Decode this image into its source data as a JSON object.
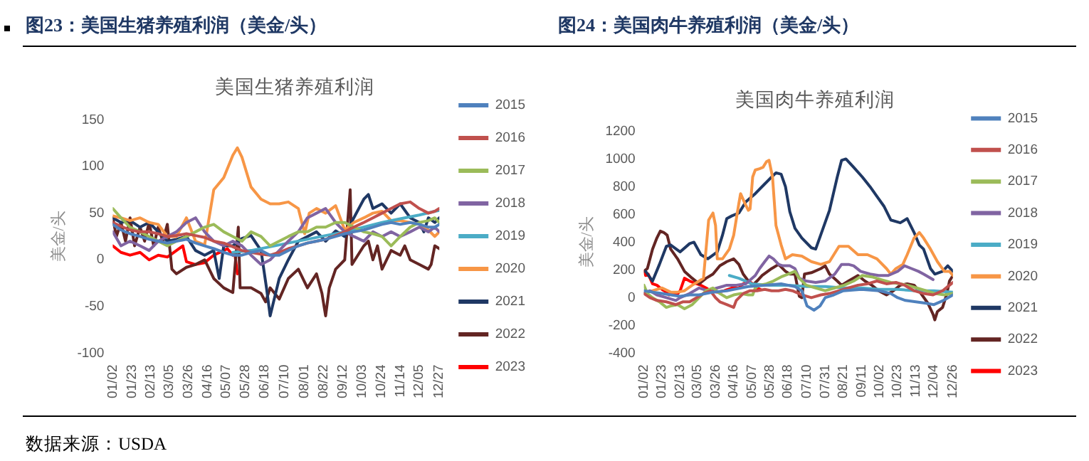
{
  "chart_data": [
    {
      "type": "line",
      "title": "图23：美国生猪养殖利润（美金/头）",
      "subtitle": "美国生猪养殖利润",
      "ylabel": "美金/头",
      "legend": "right",
      "annotations": [
        "数据来源：USDA"
      ],
      "xlim": [
        "--01-02",
        "--12-27"
      ],
      "xticks": [
        {
          "value": "--01-02",
          "label": "01/02"
        },
        {
          "value": "--01-23",
          "label": "01/23"
        },
        {
          "value": "--02-13",
          "label": "02/13"
        },
        {
          "value": "--03-05",
          "label": "03/05"
        },
        {
          "value": "--03-26",
          "label": "03/26"
        },
        {
          "value": "--04-16",
          "label": "04/16"
        },
        {
          "value": "--05-07",
          "label": "05/07"
        },
        {
          "value": "--05-28",
          "label": "05/28"
        },
        {
          "value": "--06-18",
          "label": "06/18"
        },
        {
          "value": "--07-10",
          "label": "07/10"
        },
        {
          "value": "--08-01",
          "label": "08/01"
        },
        {
          "value": "--08-22",
          "label": "08/22"
        },
        {
          "value": "--09-12",
          "label": "09/12"
        },
        {
          "value": "--10-03",
          "label": "10/03"
        },
        {
          "value": "--10-24",
          "label": "10/24"
        },
        {
          "value": "--11-14",
          "label": "11/14"
        },
        {
          "value": "--12-05",
          "label": "12/05"
        },
        {
          "value": "--12-27",
          "label": "12/27"
        }
      ],
      "ylim": [
        -100,
        150
      ],
      "yticks": [
        -100,
        -50,
        0,
        50,
        100,
        150
      ],
      "x": [
        "--01-02",
        "--01-11",
        "--01-21",
        "--02-01",
        "--02-11",
        "--02-21",
        "--03-03",
        "--03-13",
        "--03-24",
        "--04-03",
        "--04-13",
        "--04-23",
        "--05-04",
        "--05-14",
        "--05-24",
        "--06-03",
        "--06-14",
        "--06-24",
        "--07-04",
        "--07-14",
        "--07-25",
        "--08-04",
        "--08-14",
        "--08-24",
        "--09-04",
        "--09-14",
        "--09-24",
        "--10-05",
        "--10-15",
        "--10-25",
        "--11-04",
        "--11-14",
        "--11-25",
        "--12-05",
        "--12-15",
        "--12-22",
        "--12-27"
      ],
      "series": [
        {
          "name": "2015",
          "color": "#4f81bd",
          "values": [
            38,
            32,
            28,
            25,
            22,
            20,
            18,
            20,
            22,
            18,
            15,
            12,
            8,
            5,
            5,
            8,
            10,
            5,
            5,
            10,
            15,
            18,
            20,
            22,
            25,
            28,
            30,
            32,
            35,
            38,
            40,
            38,
            40,
            38,
            35,
            35,
            38
          ]
        },
        {
          "name": "2016",
          "color": "#c0504d",
          "values": [
            40,
            36,
            32,
            30,
            30,
            28,
            25,
            26,
            28,
            26,
            24,
            20,
            18,
            14,
            10,
            8,
            6,
            5,
            8,
            12,
            15,
            18,
            20,
            22,
            26,
            30,
            35,
            40,
            45,
            50,
            55,
            60,
            62,
            55,
            50,
            52,
            55
          ]
        },
        {
          "name": "2017",
          "color": "#9bbb59",
          "values": [
            55,
            45,
            35,
            30,
            25,
            20,
            15,
            20,
            25,
            30,
            35,
            38,
            30,
            25,
            20,
            30,
            25,
            15,
            20,
            25,
            30,
            30,
            35,
            35,
            40,
            40,
            35,
            30,
            28,
            25,
            15,
            25,
            35,
            40,
            42,
            45,
            40
          ]
        },
        {
          "name": "2018",
          "color": "#8064a2",
          "values": [
            30,
            15,
            20,
            15,
            10,
            20,
            25,
            30,
            40,
            45,
            30,
            20,
            15,
            20,
            15,
            5,
            -5,
            0,
            10,
            20,
            30,
            45,
            50,
            55,
            40,
            30,
            25,
            20,
            30,
            25,
            30,
            25,
            30,
            35,
            30,
            35,
            30
          ]
        },
        {
          "name": "2019",
          "color": "#4bacc6",
          "x": [
            "--05-14",
            "--06-03",
            "--06-24",
            "--07-14",
            "--08-04",
            "--08-24",
            "--09-14",
            "--10-05",
            "--10-25",
            "--11-14",
            "--12-05",
            "--12-22",
            "--12-27"
          ],
          "values": [
            8,
            10,
            14,
            18,
            22,
            26,
            30,
            35,
            40,
            44,
            48,
            52,
            53
          ]
        },
        {
          "name": "2020",
          "color": "#f79646",
          "x": [
            "--01-02",
            "--01-11",
            "--01-21",
            "--02-01",
            "--02-11",
            "--02-21",
            "--03-03",
            "--03-13",
            "--03-24",
            "--04-03",
            "--04-13",
            "--04-23",
            "--05-04",
            "--05-14",
            "--05-19",
            "--05-24",
            "--06-03",
            "--06-14",
            "--06-24",
            "--07-04",
            "--07-14",
            "--07-25",
            "--08-01",
            "--08-06",
            "--08-14",
            "--08-24",
            "--09-04",
            "--09-14",
            "--09-24",
            "--10-05",
            "--10-15",
            "--10-25",
            "--11-04",
            "--11-14",
            "--11-25",
            "--12-05",
            "--12-15",
            "--12-22",
            "--12-27"
          ],
          "values": [
            47,
            45,
            42,
            45,
            40,
            38,
            25,
            25,
            45,
            20,
            16,
            75,
            88,
            112,
            120,
            110,
            78,
            65,
            60,
            60,
            62,
            55,
            28,
            50,
            55,
            50,
            58,
            32,
            40,
            45,
            50,
            52,
            42,
            42,
            40,
            38,
            32,
            25,
            30
          ]
        },
        {
          "name": "2021",
          "color": "#1f3864",
          "x": [
            "--01-02",
            "--01-11",
            "--01-21",
            "--02-01",
            "--02-11",
            "--02-21",
            "--03-03",
            "--03-13",
            "--03-24",
            "--04-03",
            "--04-13",
            "--04-23",
            "--04-29",
            "--05-04",
            "--05-14",
            "--05-24",
            "--06-03",
            "--06-14",
            "--06-20",
            "--06-24",
            "--07-04",
            "--07-14",
            "--07-25",
            "--08-04",
            "--08-14",
            "--08-24",
            "--09-04",
            "--09-14",
            "--09-24",
            "--10-05",
            "--10-10",
            "--10-15",
            "--10-25",
            "--11-04",
            "--11-14",
            "--11-25",
            "--12-05",
            "--12-10",
            "--12-15",
            "--12-22",
            "--12-27"
          ],
          "values": [
            45,
            40,
            42,
            35,
            40,
            30,
            20,
            22,
            25,
            10,
            5,
            10,
            -20,
            15,
            15,
            23,
            26,
            10,
            -30,
            -60,
            -20,
            0,
            20,
            25,
            30,
            20,
            31,
            25,
            45,
            65,
            70,
            55,
            60,
            50,
            60,
            45,
            40,
            30,
            45,
            40,
            45
          ]
        },
        {
          "name": "2022",
          "color": "#632523",
          "x": [
            "--01-02",
            "--01-06",
            "--01-11",
            "--01-16",
            "--01-21",
            "--01-26",
            "--02-01",
            "--02-06",
            "--02-11",
            "--02-16",
            "--02-21",
            "--02-26",
            "--03-03",
            "--03-08",
            "--03-13",
            "--03-24",
            "--04-03",
            "--04-13",
            "--04-23",
            "--05-04",
            "--05-14",
            "--05-20",
            "--05-22",
            "--06-03",
            "--06-14",
            "--06-19",
            "--06-24",
            "--07-04",
            "--07-14",
            "--07-25",
            "--08-04",
            "--08-14",
            "--08-20",
            "--08-24",
            "--08-28",
            "--09-04",
            "--09-14",
            "--09-20",
            "--09-22",
            "--10-05",
            "--10-10",
            "--10-15",
            "--10-20",
            "--10-25",
            "--11-04",
            "--11-14",
            "--11-19",
            "--11-25",
            "--12-05",
            "--12-15",
            "--12-18",
            "--12-22",
            "--12-27"
          ],
          "values": [
            45,
            25,
            40,
            20,
            45,
            15,
            35,
            20,
            40,
            15,
            35,
            20,
            38,
            -10,
            -15,
            -8,
            -5,
            0,
            -20,
            -30,
            -35,
            35,
            -30,
            -30,
            -36,
            -45,
            -30,
            -42,
            -20,
            -10,
            -30,
            -15,
            -36,
            -60,
            -30,
            -10,
            0,
            75,
            -5,
            15,
            20,
            0,
            15,
            -10,
            10,
            5,
            15,
            0,
            -5,
            -10,
            -5,
            15,
            12
          ]
        },
        {
          "name": "2023",
          "color": "#ff0000",
          "x": [
            "--01-02",
            "--01-11",
            "--01-21",
            "--02-01",
            "--02-11",
            "--02-21",
            "--03-03",
            "--03-13",
            "--03-20",
            "--03-24",
            "--04-03",
            "--04-13",
            "--04-23",
            "--05-04",
            "--05-08",
            "--05-14",
            "--05-16",
            "--05-19"
          ],
          "values": [
            15,
            8,
            5,
            8,
            0,
            5,
            3,
            10,
            15,
            -2,
            -5,
            -3,
            5,
            10,
            12,
            5,
            8,
            -15
          ]
        }
      ]
    },
    {
      "type": "line",
      "title": "图24：美国肉牛养殖利润（美金/头）",
      "subtitle": "美国肉牛养殖利润",
      "ylabel": "美金/头",
      "legend": "right",
      "xlim": [
        "--01-02",
        "--12-26"
      ],
      "xticks": [
        {
          "value": "--01-02",
          "label": "01/02"
        },
        {
          "value": "--01-23",
          "label": "01/23"
        },
        {
          "value": "--02-13",
          "label": "02/13"
        },
        {
          "value": "--03-05",
          "label": "03/05"
        },
        {
          "value": "--03-26",
          "label": "03/26"
        },
        {
          "value": "--04-16",
          "label": "04/16"
        },
        {
          "value": "--05-07",
          "label": "05/07"
        },
        {
          "value": "--05-28",
          "label": "05/28"
        },
        {
          "value": "--06-18",
          "label": "06/18"
        },
        {
          "value": "--07-10",
          "label": "07/10"
        },
        {
          "value": "--07-31",
          "label": "07/31"
        },
        {
          "value": "--08-21",
          "label": "08/21"
        },
        {
          "value": "--09-11",
          "label": "09/11"
        },
        {
          "value": "--10-02",
          "label": "10/02"
        },
        {
          "value": "--10-23",
          "label": "10/23"
        },
        {
          "value": "--11-13",
          "label": "11/13"
        },
        {
          "value": "--12-04",
          "label": "12/04"
        },
        {
          "value": "--12-26",
          "label": "12/26"
        }
      ],
      "ylim": [
        -400,
        1200
      ],
      "yticks": [
        -400,
        -200,
        0,
        200,
        400,
        600,
        800,
        1000,
        1200
      ],
      "series": [
        {
          "name": "2015",
          "color": "#4f81bd",
          "x": [
            "--01-02",
            "--01-12",
            "--01-23",
            "--02-02",
            "--02-13",
            "--02-24",
            "--03-07",
            "--03-23",
            "--04-08",
            "--04-16",
            "--05-03",
            "--05-22",
            "--06-10",
            "--06-26",
            "--07-04",
            "--07-10",
            "--07-18",
            "--07-25",
            "--07-31",
            "--08-10",
            "--08-21",
            "--09-11",
            "--10-02",
            "--10-15",
            "--10-23",
            "--11-01",
            "--11-13",
            "--11-25",
            "--12-04",
            "--12-15",
            "--12-26"
          ],
          "values": [
            50,
            40,
            30,
            20,
            10,
            20,
            20,
            40,
            50,
            60,
            80,
            90,
            100,
            80,
            50,
            -60,
            -90,
            -60,
            0,
            20,
            50,
            60,
            50,
            30,
            0,
            -20,
            -30,
            -40,
            -50,
            -20,
            20
          ]
        },
        {
          "name": "2016",
          "color": "#c0504d",
          "x": [
            "--01-02",
            "--01-09",
            "--01-17",
            "--01-28",
            "--02-08",
            "--02-16",
            "--02-24",
            "--03-04",
            "--03-12",
            "--03-20",
            "--03-26",
            "--03-31",
            "--04-08",
            "--04-16",
            "--04-19",
            "--04-27",
            "--05-05",
            "--05-13",
            "--05-22",
            "--05-30",
            "--06-07",
            "--06-15",
            "--06-23",
            "--07-04",
            "--07-15",
            "--07-26",
            "--08-05",
            "--08-16",
            "--08-27",
            "--09-07",
            "--09-18",
            "--09-29",
            "--10-10",
            "--10-21",
            "--10-31",
            "--11-11",
            "--11-22",
            "--12-03",
            "--12-14",
            "--12-22",
            "--12-26"
          ],
          "values": [
            30,
            0,
            -20,
            -30,
            -50,
            -30,
            -30,
            0,
            30,
            50,
            0,
            -30,
            -50,
            -70,
            -20,
            30,
            50,
            50,
            60,
            50,
            50,
            60,
            50,
            20,
            0,
            20,
            30,
            50,
            70,
            90,
            100,
            120,
            100,
            110,
            90,
            50,
            30,
            20,
            50,
            90,
            110
          ]
        },
        {
          "name": "2017",
          "color": "#9bbb59",
          "x": [
            "--01-02",
            "--01-06",
            "--01-12",
            "--01-20",
            "--01-28",
            "--02-02",
            "--02-10",
            "--02-18",
            "--02-27",
            "--03-07",
            "--03-15",
            "--03-23",
            "--03-31",
            "--04-08",
            "--04-16",
            "--04-24",
            "--05-03",
            "--05-08",
            "--05-11",
            "--05-16",
            "--05-24",
            "--06-01",
            "--06-10",
            "--06-18",
            "--06-26",
            "--07-01",
            "--07-09",
            "--07-20",
            "--07-31",
            "--08-11",
            "--08-22",
            "--09-02",
            "--09-12",
            "--09-23",
            "--10-04",
            "--10-15",
            "--10-26",
            "--11-03",
            "--11-14",
            "--11-25",
            "--12-05",
            "--12-16",
            "--12-26"
          ],
          "values": [
            90,
            30,
            0,
            -30,
            -70,
            -60,
            -50,
            -80,
            -50,
            0,
            50,
            70,
            30,
            0,
            20,
            30,
            20,
            20,
            70,
            90,
            100,
            120,
            150,
            170,
            190,
            140,
            90,
            70,
            50,
            70,
            90,
            120,
            160,
            150,
            130,
            110,
            100,
            90,
            70,
            50,
            30,
            20,
            30
          ]
        },
        {
          "name": "2018",
          "color": "#8064a2",
          "x": [
            "--01-02",
            "--01-09",
            "--01-17",
            "--01-28",
            "--02-08",
            "--02-13",
            "--02-24",
            "--03-07",
            "--03-17",
            "--03-28",
            "--04-08",
            "--04-19",
            "--04-30",
            "--05-11",
            "--05-16",
            "--05-22",
            "--05-27",
            "--06-01",
            "--06-07",
            "--06-12",
            "--06-20",
            "--06-26",
            "--07-01",
            "--07-09",
            "--07-20",
            "--07-31",
            "--08-11",
            "--08-19",
            "--08-27",
            "--09-02",
            "--09-10",
            "--09-21",
            "--10-01",
            "--10-12",
            "--10-23",
            "--10-31",
            "--11-08",
            "--11-16",
            "--11-22",
            "--12-03"
          ],
          "values": [
            30,
            50,
            20,
            0,
            -20,
            0,
            30,
            70,
            50,
            70,
            90,
            90,
            100,
            160,
            210,
            260,
            300,
            280,
            240,
            230,
            230,
            210,
            140,
            120,
            110,
            120,
            170,
            240,
            240,
            230,
            190,
            170,
            160,
            160,
            190,
            230,
            210,
            190,
            170,
            130
          ]
        },
        {
          "name": "2019",
          "color": "#4bacc6",
          "x": [
            "--04-11",
            "--04-22",
            "--05-07",
            "--05-27",
            "--06-18",
            "--07-10",
            "--07-31",
            "--08-21",
            "--09-11",
            "--10-02",
            "--10-23",
            "--11-13",
            "--12-04",
            "--12-26"
          ],
          "values": [
            160,
            140,
            100,
            90,
            90,
            80,
            80,
            70,
            70,
            60,
            60,
            50,
            50,
            40
          ]
        },
        {
          "name": "2020",
          "color": "#f79646",
          "x": [
            "--01-02",
            "--01-12",
            "--01-23",
            "--02-02",
            "--02-10",
            "--02-18",
            "--02-27",
            "--03-07",
            "--03-12",
            "--03-18",
            "--03-23",
            "--03-26",
            "--03-28",
            "--04-03",
            "--04-11",
            "--04-16",
            "--04-22",
            "--04-24",
            "--04-29",
            "--05-03",
            "--05-05",
            "--05-08",
            "--05-11",
            "--05-16",
            "--05-20",
            "--05-24",
            "--05-27",
            "--05-31",
            "--06-04",
            "--06-10",
            "--06-15",
            "--06-23",
            "--07-04",
            "--07-15",
            "--07-26",
            "--08-05",
            "--08-16",
            "--08-27",
            "--09-07",
            "--09-18",
            "--09-29",
            "--10-10",
            "--10-15",
            "--10-21",
            "--10-29",
            "--11-03",
            "--11-11",
            "--11-17",
            "--11-22",
            "--11-30",
            "--12-08",
            "--12-16",
            "--12-22",
            "--12-26"
          ],
          "values": [
            30,
            50,
            70,
            40,
            40,
            50,
            90,
            120,
            140,
            560,
            610,
            520,
            280,
            280,
            350,
            450,
            680,
            750,
            680,
            630,
            640,
            870,
            920,
            930,
            940,
            980,
            990,
            870,
            520,
            380,
            280,
            310,
            300,
            260,
            240,
            260,
            370,
            370,
            310,
            310,
            280,
            210,
            170,
            210,
            240,
            310,
            430,
            470,
            430,
            350,
            260,
            190,
            190,
            160
          ]
        },
        {
          "name": "2021",
          "color": "#1f3864",
          "x": [
            "--01-04",
            "--01-12",
            "--01-20",
            "--01-28",
            "--02-02",
            "--02-13",
            "--02-24",
            "--03-01",
            "--03-09",
            "--03-17",
            "--03-28",
            "--04-03",
            "--04-08",
            "--04-14",
            "--04-22",
            "--04-30",
            "--05-11",
            "--05-22",
            "--05-30",
            "--06-04",
            "--06-10",
            "--06-15",
            "--06-20",
            "--06-26",
            "--07-04",
            "--07-15",
            "--07-20",
            "--07-28",
            "--08-05",
            "--08-14",
            "--08-19",
            "--08-24",
            "--09-02",
            "--09-12",
            "--09-21",
            "--09-29",
            "--10-07",
            "--10-15",
            "--10-26",
            "--11-03",
            "--11-11",
            "--11-17",
            "--11-22",
            "--11-30",
            "--12-05",
            "--12-14",
            "--12-20",
            "--12-26"
          ],
          "values": [
            190,
            120,
            240,
            370,
            380,
            330,
            390,
            400,
            310,
            280,
            330,
            450,
            570,
            590,
            610,
            690,
            750,
            820,
            870,
            900,
            890,
            800,
            620,
            500,
            430,
            360,
            350,
            490,
            630,
            870,
            990,
            1000,
            940,
            870,
            800,
            730,
            660,
            560,
            540,
            570,
            470,
            380,
            350,
            210,
            170,
            190,
            230,
            190
          ]
        },
        {
          "name": "2022",
          "color": "#632523",
          "x": [
            "--01-02",
            "--01-06",
            "--01-12",
            "--01-17",
            "--01-21",
            "--01-25",
            "--01-29",
            "--02-02",
            "--02-10",
            "--02-18",
            "--02-27",
            "--03-07",
            "--03-15",
            "--03-23",
            "--03-31",
            "--04-08",
            "--04-16",
            "--04-22",
            "--04-27",
            "--05-03",
            "--05-08",
            "--05-13",
            "--05-19",
            "--05-30",
            "--06-07",
            "--06-15",
            "--06-20",
            "--06-26",
            "--07-01",
            "--07-04",
            "--07-07",
            "--07-15",
            "--07-26",
            "--07-31",
            "--08-05",
            "--08-14",
            "--08-19",
            "--08-27",
            "--09-07",
            "--09-15",
            "--09-23",
            "--10-01",
            "--10-10",
            "--10-18",
            "--10-26",
            "--11-03",
            "--11-11",
            "--11-19",
            "--11-27",
            "--12-03",
            "--12-05",
            "--12-08",
            "--12-14",
            "--12-19",
            "--12-22",
            "--12-26"
          ],
          "values": [
            190,
            210,
            350,
            430,
            480,
            470,
            450,
            350,
            280,
            190,
            140,
            100,
            140,
            170,
            230,
            260,
            280,
            240,
            170,
            120,
            90,
            120,
            160,
            210,
            240,
            190,
            170,
            170,
            10,
            0,
            170,
            180,
            210,
            230,
            170,
            120,
            90,
            120,
            160,
            120,
            90,
            50,
            20,
            50,
            90,
            100,
            90,
            30,
            -40,
            -120,
            -160,
            -100,
            -70,
            30,
            120,
            160
          ]
        },
        {
          "name": "2023",
          "color": "#ff0000",
          "x": [
            "--01-02",
            "--01-04",
            "--01-07",
            "--01-12",
            "--01-17",
            "--01-23",
            "--01-28",
            "--01-31",
            "--02-05",
            "--02-09",
            "--02-13",
            "--02-18",
            "--02-24",
            "--03-04",
            "--03-09",
            "--03-15",
            "--03-20",
            "--03-28",
            "--04-05",
            "--04-14",
            "--04-22",
            "--04-27",
            "--05-03",
            "--05-08",
            "--05-13",
            "--05-17"
          ],
          "values": [
            190,
            160,
            170,
            100,
            90,
            60,
            40,
            20,
            30,
            20,
            50,
            140,
            120,
            100,
            90,
            70,
            50,
            40,
            50,
            70,
            70,
            100,
            120,
            100,
            70,
            60
          ]
        }
      ]
    }
  ]
}
